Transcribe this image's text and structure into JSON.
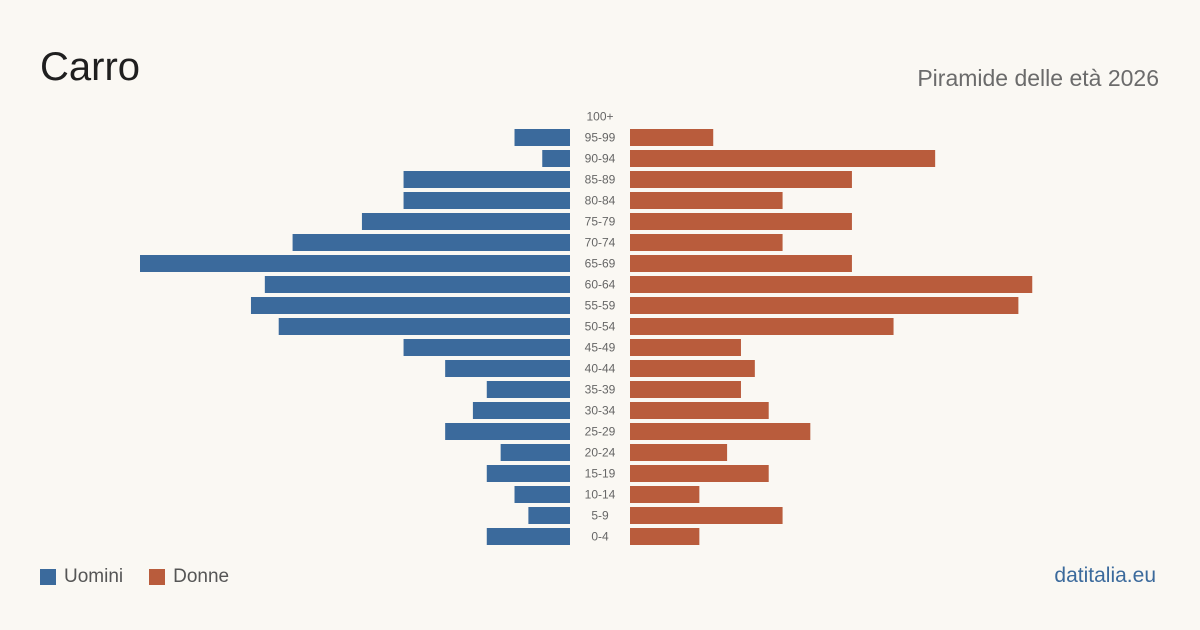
{
  "header": {
    "title": "Carro",
    "subtitle": "Piramide delle età 2026"
  },
  "legend": {
    "items": [
      {
        "label": "Uomini",
        "color": "#3b6a9c"
      },
      {
        "label": "Donne",
        "color": "#b95c3c"
      }
    ]
  },
  "footer": {
    "source": "datitalia.eu"
  },
  "chart_data": {
    "type": "bar",
    "orientation": "horizontal-pyramid",
    "categories": [
      "100+",
      "95-99",
      "90-94",
      "85-89",
      "80-84",
      "75-79",
      "70-74",
      "65-69",
      "60-64",
      "55-59",
      "50-54",
      "45-49",
      "40-44",
      "35-39",
      "30-34",
      "25-29",
      "20-24",
      "15-19",
      "10-14",
      "5-9",
      "0-4"
    ],
    "series": [
      {
        "name": "Uomini",
        "color": "#3b6a9c",
        "side": "left",
        "values": [
          0,
          4,
          2,
          12,
          12,
          15,
          20,
          31,
          22,
          23,
          21,
          12,
          9,
          6,
          7,
          9,
          5,
          6,
          4,
          3,
          6
        ]
      },
      {
        "name": "Donne",
        "color": "#b95c3c",
        "side": "right",
        "values": [
          0,
          6,
          22,
          16,
          11,
          16,
          11,
          16,
          29,
          28,
          19,
          8,
          9,
          8,
          10,
          13,
          7,
          10,
          5,
          11,
          5
        ]
      }
    ],
    "xlim": [
      0,
      31
    ],
    "grid": false,
    "legend_position": "bottom-left"
  }
}
